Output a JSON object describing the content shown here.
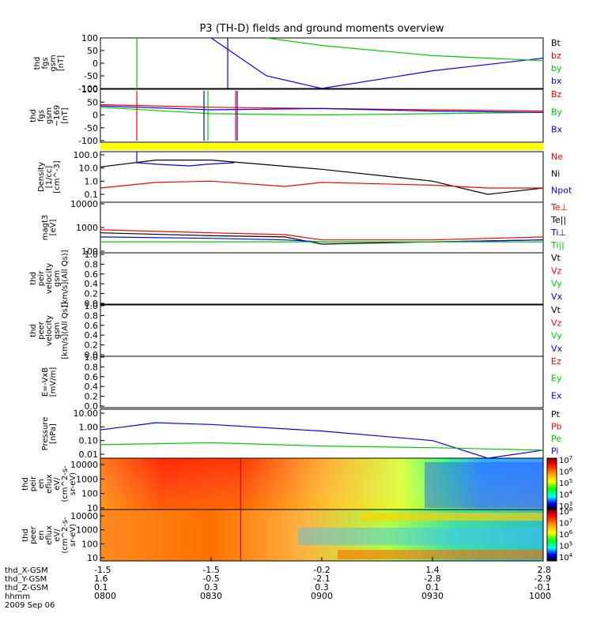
{
  "title": "P3 (TH-D) fields and ground moments overview",
  "colors": {
    "black": "#000000",
    "red": "#ff0000",
    "green": "#00cc00",
    "blue": "#0000ff",
    "yellow": "#ffff00"
  },
  "panels": [
    {
      "id": "fgs",
      "ylabel": [
        "thd",
        "fgs",
        "gsm",
        "[nT]"
      ],
      "ticks": [
        "100",
        "50",
        "0",
        "-50",
        "-100"
      ],
      "legend": [
        {
          "text": "Bt",
          "color": "black"
        },
        {
          "text": "bz",
          "color": "red"
        },
        {
          "text": "by",
          "color": "green"
        },
        {
          "text": "bx",
          "color": "blue"
        }
      ]
    },
    {
      "id": "fgh",
      "ylabel": [
        "thd",
        "fgs",
        "gsm",
        "~169",
        "[nT]"
      ],
      "ticks": [
        "100",
        "50",
        "0",
        "-50",
        "-100"
      ],
      "legend": [
        {
          "text": "Bz",
          "color": "red"
        },
        {
          "text": "By",
          "color": "green"
        },
        {
          "text": "Bx",
          "color": "blue"
        }
      ]
    },
    {
      "id": "density",
      "ylabel": [
        "Density",
        "[1/cc]",
        "[cm^-3]"
      ],
      "ticks": [
        "100.0",
        "10.0",
        "1.0",
        "0.1"
      ],
      "legend": [
        {
          "text": "Ne",
          "color": "red"
        },
        {
          "text": "Ni",
          "color": "black"
        },
        {
          "text": "Npot",
          "color": "blue"
        }
      ]
    },
    {
      "id": "temp",
      "ylabel": [
        "magt3",
        "[eV]"
      ],
      "ticks": [
        "10000",
        "1000",
        "100"
      ],
      "legend": [
        {
          "text": "Te⊥",
          "color": "red"
        },
        {
          "text": "Te||",
          "color": "black"
        },
        {
          "text": "Ti⊥",
          "color": "blue"
        },
        {
          "text": "Ti||",
          "color": "green"
        }
      ]
    },
    {
      "id": "peir_vel",
      "ylabel": [
        "thd",
        "peir",
        "velocity",
        "gsm",
        "[km/s](All Qs)]"
      ],
      "ticks": [
        "1.0",
        "0.8",
        "0.6",
        "0.4",
        "0.2",
        "0.0"
      ],
      "legend": [
        {
          "text": "Vt",
          "color": "black"
        },
        {
          "text": "Vz",
          "color": "red"
        },
        {
          "text": "Vy",
          "color": "green"
        },
        {
          "text": "Vx",
          "color": "blue"
        }
      ]
    },
    {
      "id": "peer_vel",
      "ylabel": [
        "thd",
        "peer",
        "velocity",
        "gsm",
        "[km/s](All Qs)]"
      ],
      "ticks": [
        "1.0",
        "0.8",
        "0.6",
        "0.4",
        "0.2",
        "0.0"
      ],
      "legend": [
        {
          "text": "Vt",
          "color": "black"
        },
        {
          "text": "Vz",
          "color": "red"
        },
        {
          "text": "Vy",
          "color": "green"
        },
        {
          "text": "Vx",
          "color": "blue"
        }
      ]
    },
    {
      "id": "efield",
      "ylabel": [
        "E=-VxB",
        "[mV/m]"
      ],
      "ticks": [
        "1.0",
        "0.8",
        "0.6",
        "0.4",
        "0.2",
        "0.0"
      ],
      "legend": [
        {
          "text": "Ez",
          "color": "red"
        },
        {
          "text": "Ey",
          "color": "green"
        },
        {
          "text": "Ex",
          "color": "blue"
        }
      ]
    },
    {
      "id": "pressure",
      "ylabel": [
        "Pressure",
        "[nPa]"
      ],
      "ticks": [
        "10.00",
        "1.00",
        "0.10",
        "0.01"
      ],
      "legend": [
        {
          "text": "Pt",
          "color": "black"
        },
        {
          "text": "Pb",
          "color": "red"
        },
        {
          "text": "Pe",
          "color": "green"
        },
        {
          "text": "Pi",
          "color": "blue"
        }
      ]
    },
    {
      "id": "peir_en",
      "ylabel": [
        "thd",
        "peir",
        "en",
        "eflux",
        "eV/",
        "(cm^2-s-",
        "sr-eV)"
      ],
      "ticks": [
        "10000",
        "1000",
        "100",
        "10"
      ],
      "colorbar": [
        "10^7",
        "10^6",
        "10^5",
        "10^4",
        "10^3"
      ]
    },
    {
      "id": "peer_en",
      "ylabel": [
        "thd",
        "peer",
        "en",
        "eflux",
        "eV/",
        "(cm^2-s-",
        "sr-eV)"
      ],
      "ticks": [
        "10000",
        "1000",
        "100",
        "10"
      ],
      "colorbar": [
        "10^8",
        "10^7",
        "10^6",
        "10^5",
        "10^4"
      ]
    }
  ],
  "xaxis": {
    "rows": [
      {
        "label": "thd_X-GSM",
        "values": [
          "-1.5",
          "-1.5",
          "-0.2",
          "1.4",
          "2.8"
        ]
      },
      {
        "label": "thd_Y-GSM",
        "values": [
          "1.6",
          "-0.5",
          "-2.1",
          "-2.8",
          "-2.9"
        ]
      },
      {
        "label": "thd_Z-GSM",
        "values": [
          "0.1",
          "0.3",
          "0.3",
          "0.1",
          "-0.1"
        ]
      },
      {
        "label": "hhmm",
        "values": [
          "0800",
          "0830",
          "0900",
          "0930",
          "1000"
        ]
      }
    ],
    "date": "2009 Sep 06"
  },
  "chart_data": {
    "type": "line",
    "title": "P3 (TH-D) fields and ground moments overview",
    "x": [
      "0800",
      "0830",
      "0900",
      "0930",
      "1000"
    ],
    "series": [
      {
        "name": "bx",
        "x": [
          "0830",
          "0845",
          "0900",
          "0930",
          "1000"
        ],
        "values": [
          100,
          -50,
          -100,
          -30,
          20
        ]
      },
      {
        "name": "by",
        "x": [
          "0845",
          "0900",
          "0930",
          "1000"
        ],
        "values": [
          100,
          70,
          30,
          10
        ]
      },
      {
        "name": "Bz",
        "x": [
          "0800",
          "0830",
          "0900",
          "0930",
          "1000"
        ],
        "values": [
          40,
          30,
          25,
          20,
          15
        ]
      },
      {
        "name": "By",
        "x": [
          "0800",
          "0830",
          "0900",
          "0930",
          "1000"
        ],
        "values": [
          30,
          5,
          0,
          5,
          10
        ]
      },
      {
        "name": "Bx",
        "x": [
          "0800",
          "0830",
          "0900",
          "0930",
          "1000"
        ],
        "values": [
          35,
          20,
          25,
          15,
          10
        ]
      },
      {
        "name": "Ni",
        "x": [
          "0800",
          "0815",
          "0830",
          "0900",
          "0930",
          "0945",
          "1000"
        ],
        "values": [
          12,
          40,
          40,
          8,
          1.0,
          0.1,
          0.3
        ]
      },
      {
        "name": "Ne",
        "x": [
          "0800",
          "0815",
          "0830",
          "0850",
          "0900",
          "0930",
          "0945",
          "1000"
        ],
        "values": [
          0.3,
          0.8,
          1.0,
          0.4,
          0.8,
          0.5,
          0.3,
          0.3
        ]
      },
      {
        "name": "Te⊥",
        "x": [
          "0800",
          "0830",
          "0850",
          "0900",
          "0930",
          "1000"
        ],
        "values": [
          800,
          600,
          500,
          300,
          300,
          400
        ]
      },
      {
        "name": "Te||",
        "x": [
          "0800",
          "0830",
          "0850",
          "0900",
          "0930",
          "1000"
        ],
        "values": [
          600,
          450,
          400,
          200,
          250,
          300
        ]
      },
      {
        "name": "Ti⊥",
        "x": [
          "0800",
          "0830",
          "0850",
          "0900",
          "0930",
          "1000"
        ],
        "values": [
          400,
          350,
          300,
          250,
          250,
          300
        ]
      },
      {
        "name": "Ti||",
        "x": [
          "0800",
          "0830",
          "0900",
          "0930",
          "1000"
        ],
        "values": [
          250,
          250,
          250,
          250,
          250
        ]
      },
      {
        "name": "Pi",
        "x": [
          "0800",
          "0815",
          "0830",
          "0900",
          "0930",
          "0945",
          "1000"
        ],
        "values": [
          0.6,
          2.0,
          1.5,
          0.5,
          0.1,
          0.005,
          0.02
        ]
      },
      {
        "name": "Pe",
        "x": [
          "0800",
          "0830",
          "0900",
          "0930",
          "1000"
        ],
        "values": [
          0.05,
          0.07,
          0.04,
          0.03,
          0.02
        ]
      }
    ]
  }
}
